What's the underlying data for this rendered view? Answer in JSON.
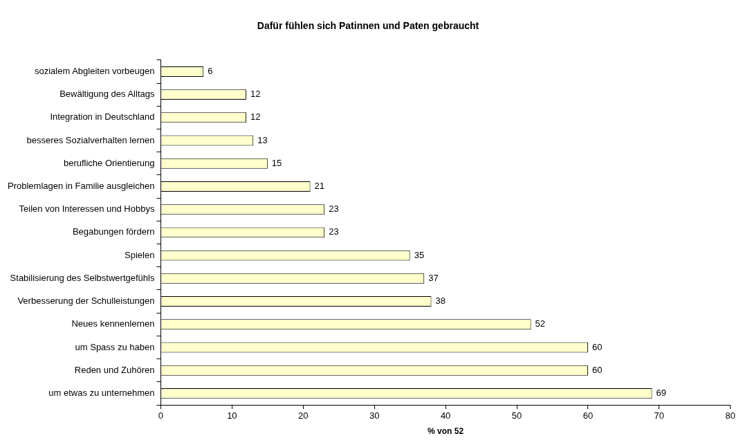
{
  "chart_data": {
    "type": "bar",
    "orientation": "horizontal",
    "title": "Dafür fühlen sich Patinnen und Paten gebraucht",
    "xlabel": "% von 52",
    "categories": [
      "sozialem Abgleiten vorbeugen",
      "Bewältigung des Alltags",
      "Integration in Deutschland",
      "besseres Sozialverhalten lernen",
      "berufliche Orientierung",
      "Problemlagen in Familie ausgleichen",
      "Teilen von Interessen und Hobbys",
      "Begabungen fördern",
      "Spielen",
      "Stabilisierung des Selbstwertgefühls",
      "Verbesserung der Schulleistungen",
      "Neues kennenlernen",
      "um Spass zu haben",
      "Reden und Zuhören",
      "um etwas zu unternehmen"
    ],
    "values": [
      6,
      12,
      12,
      13,
      15,
      21,
      23,
      23,
      35,
      37,
      38,
      52,
      60,
      60,
      69
    ],
    "color": "#ffffcc",
    "xlim": [
      0,
      80
    ],
    "xticks": [
      0,
      10,
      20,
      30,
      40,
      50,
      60,
      70,
      80
    ],
    "grid": false,
    "legend": false,
    "data_labels": true
  }
}
